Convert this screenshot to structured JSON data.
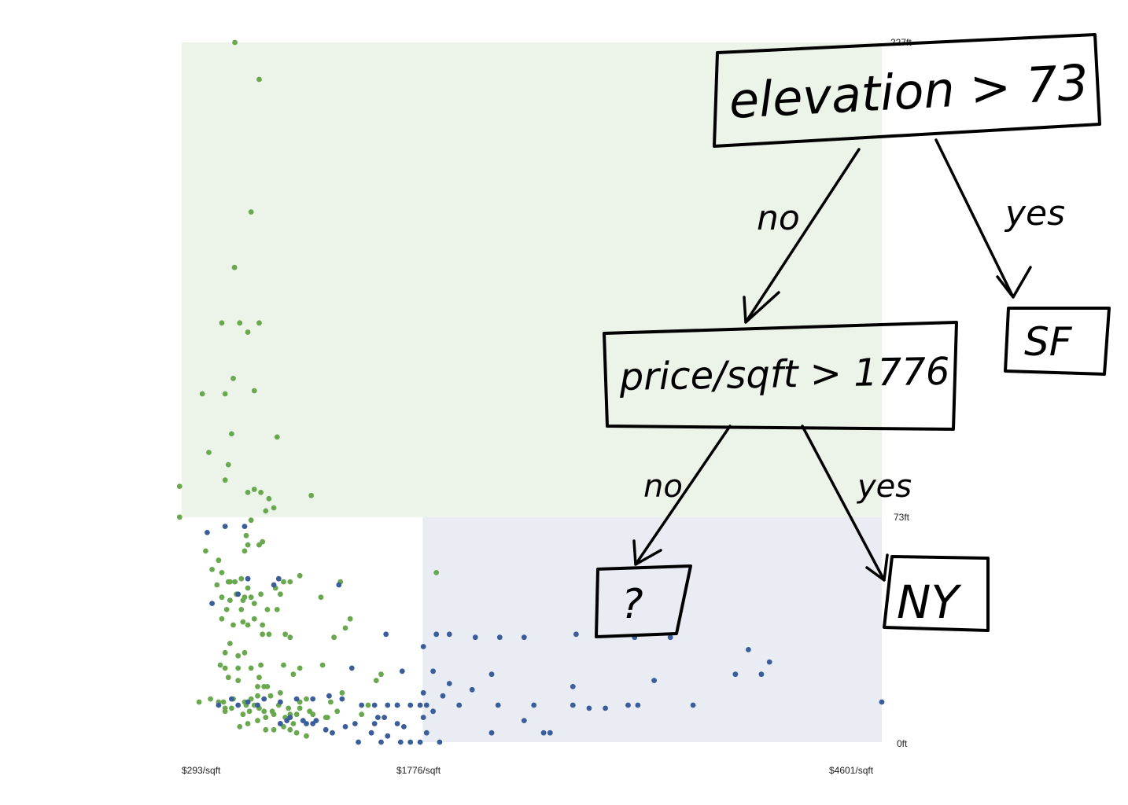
{
  "chart_data": {
    "type": "scatter",
    "x_ticks": [
      "$293/sqft",
      "$1776/sqft",
      "$4601/sqft"
    ],
    "y_ticks": [
      "0ft",
      "73ft",
      "227ft"
    ],
    "xlim": [
      293,
      4601
    ],
    "ylim": [
      0,
      227
    ],
    "thresholds": {
      "elevation": 73,
      "price_per_sqft": 1776
    },
    "series": [
      {
        "color": "#6aa84f",
        "points": [
          [
            620,
            227
          ],
          [
            770,
            215
          ],
          [
            720,
            172
          ],
          [
            618,
            154
          ],
          [
            540,
            136
          ],
          [
            650,
            136
          ],
          [
            770,
            136
          ],
          [
            700,
            133
          ],
          [
            420,
            113
          ],
          [
            560,
            113
          ],
          [
            610,
            118
          ],
          [
            740,
            114
          ],
          [
            600,
            100
          ],
          [
            880,
            99
          ],
          [
            460,
            94
          ],
          [
            580,
            90
          ],
          [
            1090,
            80
          ],
          [
            860,
            76
          ],
          [
            720,
            72
          ],
          [
            780,
            81
          ],
          [
            690,
            67
          ],
          [
            440,
            62
          ],
          [
            520,
            59
          ],
          [
            280,
            83
          ],
          [
            280,
            73
          ],
          [
            560,
            85
          ],
          [
            700,
            81
          ],
          [
            740,
            82
          ],
          [
            830,
            79
          ],
          [
            810,
            75
          ],
          [
            790,
            65
          ],
          [
            770,
            64
          ],
          [
            700,
            64
          ],
          [
            680,
            62
          ],
          [
            480,
            56
          ],
          [
            540,
            55
          ],
          [
            580,
            52
          ],
          [
            590,
            52
          ],
          [
            660,
            53
          ],
          [
            620,
            52
          ],
          [
            1020,
            54
          ],
          [
            700,
            50
          ],
          [
            630,
            48
          ],
          [
            720,
            47
          ],
          [
            680,
            47
          ],
          [
            780,
            48
          ],
          [
            670,
            46
          ],
          [
            1860,
            55
          ],
          [
            870,
            50
          ],
          [
            920,
            52
          ],
          [
            960,
            52
          ],
          [
            1270,
            52
          ],
          [
            900,
            48
          ],
          [
            540,
            47
          ],
          [
            510,
            51
          ],
          [
            590,
            46
          ],
          [
            740,
            45
          ],
          [
            820,
            43
          ],
          [
            660,
            43
          ],
          [
            570,
            43
          ],
          [
            540,
            40
          ],
          [
            700,
            38
          ],
          [
            740,
            40
          ],
          [
            670,
            39
          ],
          [
            610,
            38
          ],
          [
            880,
            43
          ],
          [
            1150,
            47
          ],
          [
            1330,
            40
          ],
          [
            790,
            38
          ],
          [
            930,
            35
          ],
          [
            830,
            35
          ],
          [
            790,
            35
          ],
          [
            960,
            34
          ],
          [
            590,
            32
          ],
          [
            680,
            29
          ],
          [
            560,
            29
          ],
          [
            640,
            28
          ],
          [
            1020,
            24
          ],
          [
            640,
            24
          ],
          [
            770,
            21
          ],
          [
            800,
            18
          ],
          [
            760,
            18
          ],
          [
            720,
            24
          ],
          [
            530,
            25
          ],
          [
            560,
            24
          ],
          [
            780,
            25
          ],
          [
            920,
            25
          ],
          [
            1160,
            25
          ],
          [
            1230,
            34
          ],
          [
            1300,
            37
          ],
          [
            610,
            14
          ],
          [
            820,
            18
          ],
          [
            900,
            16
          ],
          [
            580,
            21
          ],
          [
            640,
            20
          ],
          [
            980,
            22
          ],
          [
            550,
            13
          ],
          [
            680,
            13
          ],
          [
            560,
            10
          ],
          [
            770,
            11
          ],
          [
            710,
            10
          ],
          [
            670,
            9
          ],
          [
            740,
            12
          ],
          [
            810,
            8
          ],
          [
            850,
            10
          ],
          [
            930,
            8
          ],
          [
            1000,
            9
          ],
          [
            1100,
            9
          ],
          [
            1180,
            8
          ],
          [
            1250,
            10
          ],
          [
            1400,
            9
          ],
          [
            1620,
            12
          ],
          [
            1280,
            16
          ],
          [
            1520,
            22
          ],
          [
            1490,
            20
          ],
          [
            1060,
            14
          ],
          [
            1020,
            13
          ],
          [
            1210,
            13
          ],
          [
            400,
            13
          ],
          [
            470,
            14
          ],
          [
            520,
            13
          ],
          [
            560,
            11
          ],
          [
            600,
            11
          ],
          [
            690,
            12
          ],
          [
            720,
            14
          ],
          [
            800,
            10
          ],
          [
            840,
            15
          ],
          [
            890,
            12
          ],
          [
            950,
            11
          ],
          [
            1020,
            11
          ],
          [
            760,
            15
          ],
          [
            1000,
            3
          ],
          [
            860,
            4
          ],
          [
            1060,
            2
          ],
          [
            760,
            7
          ],
          [
            900,
            6
          ],
          [
            1190,
            8
          ],
          [
            960,
            9
          ],
          [
            810,
            4
          ],
          [
            920,
            5
          ],
          [
            980,
            6
          ],
          [
            650,
            5
          ],
          [
            700,
            6
          ],
          [
            860,
            9
          ],
          [
            960,
            4
          ],
          [
            1080,
            10
          ],
          [
            1440,
            12
          ]
        ]
      },
      {
        "color": "#3b5e9a",
        "points": [
          [
            450,
            68
          ],
          [
            560,
            70
          ],
          [
            680,
            70
          ],
          [
            480,
            45
          ],
          [
            640,
            48
          ],
          [
            700,
            53
          ],
          [
            890,
            53
          ],
          [
            1260,
            51
          ],
          [
            860,
            51
          ],
          [
            1650,
            23
          ],
          [
            1550,
            35
          ],
          [
            1780,
            31
          ],
          [
            1860,
            35
          ],
          [
            1940,
            35
          ],
          [
            2100,
            34
          ],
          [
            2250,
            34
          ],
          [
            2400,
            34
          ],
          [
            2720,
            35
          ],
          [
            3080,
            34
          ],
          [
            3300,
            34
          ],
          [
            3780,
            30
          ],
          [
            3860,
            22
          ],
          [
            3910,
            26
          ],
          [
            3700,
            22
          ],
          [
            3200,
            20
          ],
          [
            2700,
            18
          ],
          [
            2200,
            22
          ],
          [
            2080,
            17
          ],
          [
            1940,
            19
          ],
          [
            1840,
            23
          ],
          [
            1780,
            16
          ],
          [
            1800,
            12
          ],
          [
            1900,
            15
          ],
          [
            2000,
            12
          ],
          [
            2240,
            12
          ],
          [
            2460,
            12
          ],
          [
            2700,
            12
          ],
          [
            3040,
            12
          ],
          [
            3100,
            12
          ],
          [
            3440,
            12
          ],
          [
            4601,
            13
          ],
          [
            2900,
            11
          ],
          [
            2800,
            11
          ],
          [
            1340,
            24
          ],
          [
            1280,
            14
          ],
          [
            1200,
            15
          ],
          [
            1100,
            14
          ],
          [
            1000,
            14
          ],
          [
            900,
            13
          ],
          [
            800,
            14
          ],
          [
            760,
            12
          ],
          [
            700,
            13
          ],
          [
            640,
            12
          ],
          [
            600,
            14
          ],
          [
            520,
            12
          ],
          [
            1400,
            12
          ],
          [
            1480,
            12
          ],
          [
            1500,
            8
          ],
          [
            1540,
            8
          ],
          [
            1560,
            12
          ],
          [
            1620,
            12
          ],
          [
            1700,
            12
          ],
          [
            1760,
            12
          ],
          [
            1780,
            8
          ],
          [
            1360,
            6
          ],
          [
            1100,
            6
          ],
          [
            1060,
            6
          ],
          [
            1180,
            4
          ],
          [
            1220,
            3
          ],
          [
            1480,
            6
          ],
          [
            1620,
            6
          ],
          [
            1800,
            3
          ],
          [
            2200,
            3
          ],
          [
            2520,
            3
          ],
          [
            2560,
            3
          ],
          [
            1880,
            0
          ],
          [
            1760,
            0
          ],
          [
            1700,
            0
          ],
          [
            1640,
            0
          ],
          [
            1560,
            2
          ],
          [
            1520,
            0
          ],
          [
            1460,
            3
          ],
          [
            1380,
            0
          ],
          [
            900,
            6
          ],
          [
            940,
            7
          ],
          [
            1300,
            5
          ],
          [
            2400,
            7
          ],
          [
            1660,
            5
          ],
          [
            1840,
            10
          ],
          [
            960,
            8
          ],
          [
            1040,
            7
          ],
          [
            1120,
            7
          ]
        ]
      }
    ]
  },
  "tree": {
    "root_label": "elevation > 73",
    "mid_label": "price/sqft > 1776",
    "leaf_sf": "SF",
    "leaf_unknown": "?",
    "leaf_ny": "NY",
    "yes_label": "yes",
    "no_label": "no"
  }
}
